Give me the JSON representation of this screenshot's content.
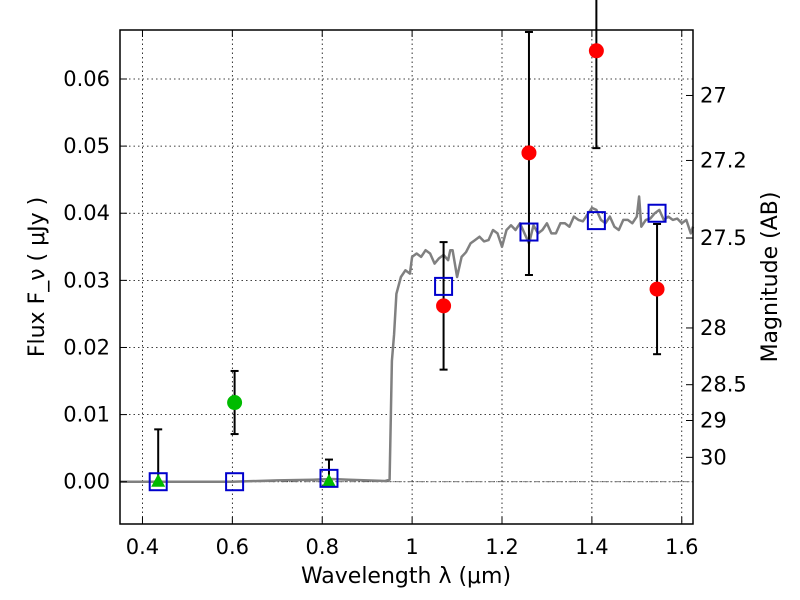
{
  "chart_data": {
    "type": "scatter",
    "xlabel": "Wavelength  λ (μm)",
    "ylabel": "Flux  F_ν  ( μJy )",
    "y2label": "Magnitude (AB)",
    "xlim": [
      0.35,
      1.625
    ],
    "ylim": [
      -0.0063,
      0.0673
    ],
    "grid": true,
    "x_ticks": [
      {
        "value": 0.4,
        "label": "0.4"
      },
      {
        "value": 0.6,
        "label": "0.6"
      },
      {
        "value": 0.8,
        "label": "0.8"
      },
      {
        "value": 1.0,
        "label": "1"
      },
      {
        "value": 1.2,
        "label": "1.2"
      },
      {
        "value": 1.4,
        "label": "1.4"
      },
      {
        "value": 1.6,
        "label": "1.6"
      }
    ],
    "y_ticks": [
      {
        "value": 0.0,
        "label": "0.00"
      },
      {
        "value": 0.01,
        "label": "0.01"
      },
      {
        "value": 0.02,
        "label": "0.02"
      },
      {
        "value": 0.03,
        "label": "0.03"
      },
      {
        "value": 0.04,
        "label": "0.04"
      },
      {
        "value": 0.05,
        "label": "0.05"
      },
      {
        "value": 0.06,
        "label": "0.06"
      }
    ],
    "y2_ticks": [
      {
        "value": 27,
        "label": "27"
      },
      {
        "value": 27.2,
        "label": "27.2"
      },
      {
        "value": 27.5,
        "label": "27.5"
      },
      {
        "value": 28,
        "label": "28"
      },
      {
        "value": 28.5,
        "label": "28.5"
      },
      {
        "value": 29,
        "label": "29"
      },
      {
        "value": 30,
        "label": "30"
      }
    ],
    "series": [
      {
        "kind": "line",
        "color": "#808080",
        "points": [
          [
            0.35,
            0.0
          ],
          [
            0.6,
            0.0
          ],
          [
            0.7,
            0.0002
          ],
          [
            0.78,
            0.0003
          ],
          [
            0.82,
            0.0004
          ],
          [
            0.86,
            0.0003
          ],
          [
            0.9,
            0.0002
          ],
          [
            0.94,
            0.0001
          ],
          [
            0.95,
            0.0003
          ],
          [
            0.955,
            0.018
          ],
          [
            0.96,
            0.022
          ],
          [
            0.965,
            0.028
          ],
          [
            0.975,
            0.0305
          ],
          [
            0.985,
            0.0315
          ],
          [
            0.995,
            0.031
          ],
          [
            1.0,
            0.0335
          ],
          [
            1.01,
            0.034
          ],
          [
            1.02,
            0.0335
          ],
          [
            1.03,
            0.0345
          ],
          [
            1.04,
            0.034
          ],
          [
            1.05,
            0.0325
          ],
          [
            1.06,
            0.0333
          ],
          [
            1.07,
            0.0338
          ],
          [
            1.08,
            0.033
          ],
          [
            1.085,
            0.0345
          ],
          [
            1.09,
            0.0345
          ],
          [
            1.1,
            0.0305
          ],
          [
            1.11,
            0.0335
          ],
          [
            1.12,
            0.0342
          ],
          [
            1.13,
            0.0355
          ],
          [
            1.14,
            0.036
          ],
          [
            1.15,
            0.0365
          ],
          [
            1.16,
            0.0358
          ],
          [
            1.17,
            0.036
          ],
          [
            1.18,
            0.0375
          ],
          [
            1.19,
            0.037
          ],
          [
            1.2,
            0.035
          ],
          [
            1.21,
            0.0375
          ],
          [
            1.22,
            0.0382
          ],
          [
            1.23,
            0.0375
          ],
          [
            1.24,
            0.0385
          ],
          [
            1.25,
            0.037
          ],
          [
            1.26,
            0.0355
          ],
          [
            1.27,
            0.0382
          ],
          [
            1.28,
            0.037
          ],
          [
            1.29,
            0.0375
          ],
          [
            1.3,
            0.0385
          ],
          [
            1.31,
            0.037
          ],
          [
            1.32,
            0.037
          ],
          [
            1.33,
            0.0385
          ],
          [
            1.34,
            0.0385
          ],
          [
            1.35,
            0.038
          ],
          [
            1.36,
            0.0395
          ],
          [
            1.37,
            0.039
          ],
          [
            1.38,
            0.0388
          ],
          [
            1.39,
            0.0398
          ],
          [
            1.4,
            0.0408
          ],
          [
            1.41,
            0.0405
          ],
          [
            1.42,
            0.039
          ],
          [
            1.43,
            0.0385
          ],
          [
            1.44,
            0.0395
          ],
          [
            1.45,
            0.038
          ],
          [
            1.46,
            0.0375
          ],
          [
            1.47,
            0.039
          ],
          [
            1.48,
            0.039
          ],
          [
            1.49,
            0.0385
          ],
          [
            1.5,
            0.0395
          ],
          [
            1.505,
            0.0425
          ],
          [
            1.51,
            0.038
          ],
          [
            1.52,
            0.039
          ],
          [
            1.53,
            0.0392
          ],
          [
            1.54,
            0.04
          ],
          [
            1.55,
            0.0405
          ],
          [
            1.56,
            0.039
          ],
          [
            1.57,
            0.0395
          ],
          [
            1.58,
            0.039
          ],
          [
            1.59,
            0.0392
          ],
          [
            1.6,
            0.0385
          ],
          [
            1.61,
            0.039
          ],
          [
            1.62,
            0.037
          ],
          [
            1.625,
            0.038
          ]
        ]
      },
      {
        "kind": "points",
        "marker": "circle",
        "color": "#ff0000",
        "points": [
          {
            "x": 1.07,
            "y": 0.0262,
            "err_low": 0.0095,
            "err_high": 0.0095
          },
          {
            "x": 1.26,
            "y": 0.049,
            "err_low": 0.0182,
            "err_high": 0.018
          },
          {
            "x": 1.41,
            "y": 0.0642,
            "err_low": 0.0145,
            "err_high": 0.0145
          },
          {
            "x": 1.545,
            "y": 0.0287,
            "err_low": 0.0097,
            "err_high": 0.0097
          }
        ]
      },
      {
        "kind": "points",
        "marker": "circle",
        "color": "#00bb00",
        "points": [
          {
            "x": 0.605,
            "y": 0.0118,
            "err_low": 0.0047,
            "err_high": 0.0047
          }
        ]
      },
      {
        "kind": "points",
        "marker": "triangle",
        "color": "#00bb00",
        "points": [
          {
            "x": 0.435,
            "y": 0.0,
            "err_low": 0.0,
            "err_high": 0.0078
          },
          {
            "x": 0.815,
            "y": 0.0,
            "err_low": 0.0,
            "err_high": 0.0033
          }
        ]
      },
      {
        "kind": "points",
        "marker": "square-open",
        "color": "#0000cc",
        "points": [
          {
            "x": 0.435,
            "y": 0.0
          },
          {
            "x": 0.605,
            "y": 0.0
          },
          {
            "x": 0.815,
            "y": 0.0005
          },
          {
            "x": 1.07,
            "y": 0.0291
          },
          {
            "x": 1.26,
            "y": 0.0372
          },
          {
            "x": 1.41,
            "y": 0.0389
          },
          {
            "x": 1.545,
            "y": 0.04
          }
        ]
      }
    ]
  }
}
